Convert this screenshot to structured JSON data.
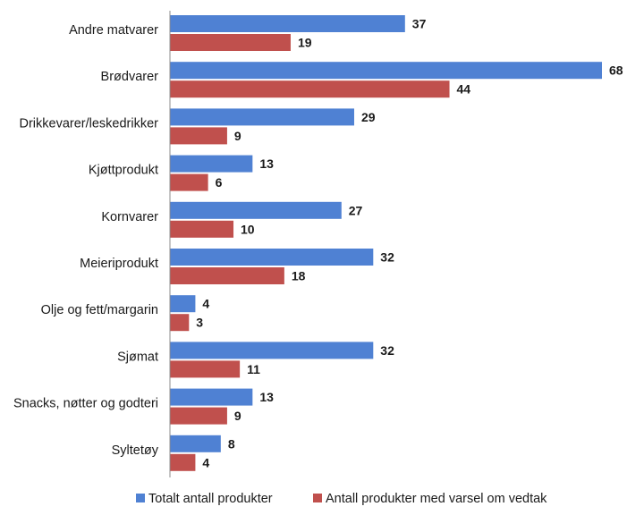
{
  "chart_data": {
    "type": "bar",
    "orientation": "horizontal",
    "title": "",
    "xlabel": "",
    "ylabel": "",
    "xlim": [
      0,
      68
    ],
    "grid": false,
    "legend_position": "bottom",
    "categories": [
      "Andre matvarer",
      "Brødvarer",
      "Drikkevarer/leskedrikker",
      "Kjøttprodukt",
      "Kornvarer",
      "Meieriprodukt",
      "Olje og fett/margarin",
      "Sjømat",
      "Snacks, nøtter og godteri",
      "Syltetøy"
    ],
    "series": [
      {
        "name": "Totalt antall produkter",
        "color": "#4f81d3",
        "values": [
          37,
          68,
          29,
          13,
          27,
          32,
          4,
          32,
          13,
          8
        ]
      },
      {
        "name": "Antall produkter med varsel om vedtak",
        "color": "#c0504d",
        "values": [
          19,
          44,
          9,
          6,
          10,
          18,
          3,
          11,
          9,
          4
        ]
      }
    ]
  }
}
